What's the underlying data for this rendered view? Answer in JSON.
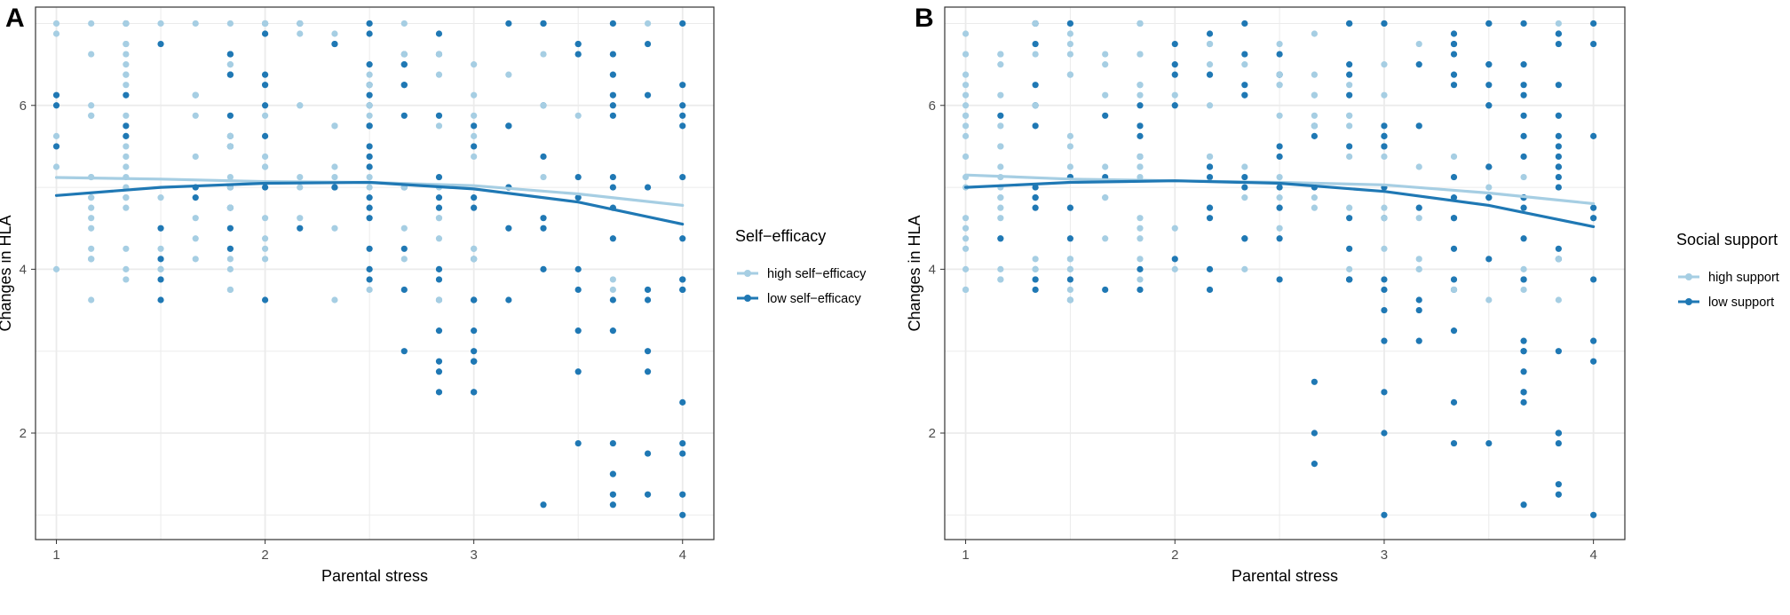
{
  "colors": {
    "high": "#a6cee3",
    "low": "#1f78b4",
    "grid": "#ebebeb",
    "panel_border": "#333333"
  },
  "chart_data": [
    {
      "type": "scatter",
      "panel_label": "A",
      "xlabel": "Parental stress",
      "ylabel": "Changes in HLA",
      "xlim": [
        0.9,
        4.15
      ],
      "ylim": [
        0.7,
        7.2
      ],
      "x_ticks": [
        1,
        2,
        3,
        4
      ],
      "y_ticks": [
        2,
        4,
        6
      ],
      "grid": true,
      "legend": {
        "title": "Self−efficacy",
        "position": "right",
        "items": [
          {
            "label": "high self−efficacy",
            "series": "high"
          },
          {
            "label": "low self−efficacy",
            "series": "low"
          }
        ]
      },
      "series": [
        {
          "name": "high self-efficacy",
          "color": "#a6cee3",
          "smooth": {
            "x": [
              1.0,
              1.5,
              2.0,
              2.5,
              3.0,
              3.5,
              4.0
            ],
            "y": [
              5.12,
              5.1,
              5.07,
              5.06,
              5.02,
              4.92,
              4.78
            ]
          }
        },
        {
          "name": "low self-efficacy",
          "color": "#1f78b4",
          "smooth": {
            "x": [
              1.0,
              1.5,
              2.0,
              2.5,
              3.0,
              3.5,
              4.0
            ],
            "y": [
              4.9,
              5.0,
              5.05,
              5.06,
              4.98,
              4.82,
              4.55
            ]
          }
        }
      ]
    },
    {
      "type": "scatter",
      "panel_label": "B",
      "xlabel": "Parental stress",
      "ylabel": "Changes in HLA",
      "xlim": [
        0.9,
        4.15
      ],
      "ylim": [
        0.7,
        7.2
      ],
      "x_ticks": [
        1,
        2,
        3,
        4
      ],
      "y_ticks": [
        2,
        4,
        6
      ],
      "grid": true,
      "legend": {
        "title": "Social support",
        "position": "right",
        "items": [
          {
            "label": "high support",
            "series": "high"
          },
          {
            "label": "low support",
            "series": "low"
          }
        ]
      },
      "series": [
        {
          "name": "high support",
          "color": "#a6cee3",
          "smooth": {
            "x": [
              1.0,
              1.5,
              2.0,
              2.5,
              3.0,
              3.5,
              4.0
            ],
            "y": [
              5.15,
              5.1,
              5.08,
              5.06,
              5.03,
              4.93,
              4.8
            ]
          }
        },
        {
          "name": "low support",
          "color": "#1f78b4",
          "smooth": {
            "x": [
              1.0,
              1.5,
              2.0,
              2.5,
              3.0,
              3.5,
              4.0
            ],
            "y": [
              5.0,
              5.06,
              5.08,
              5.05,
              4.95,
              4.78,
              4.52
            ]
          }
        }
      ]
    }
  ]
}
